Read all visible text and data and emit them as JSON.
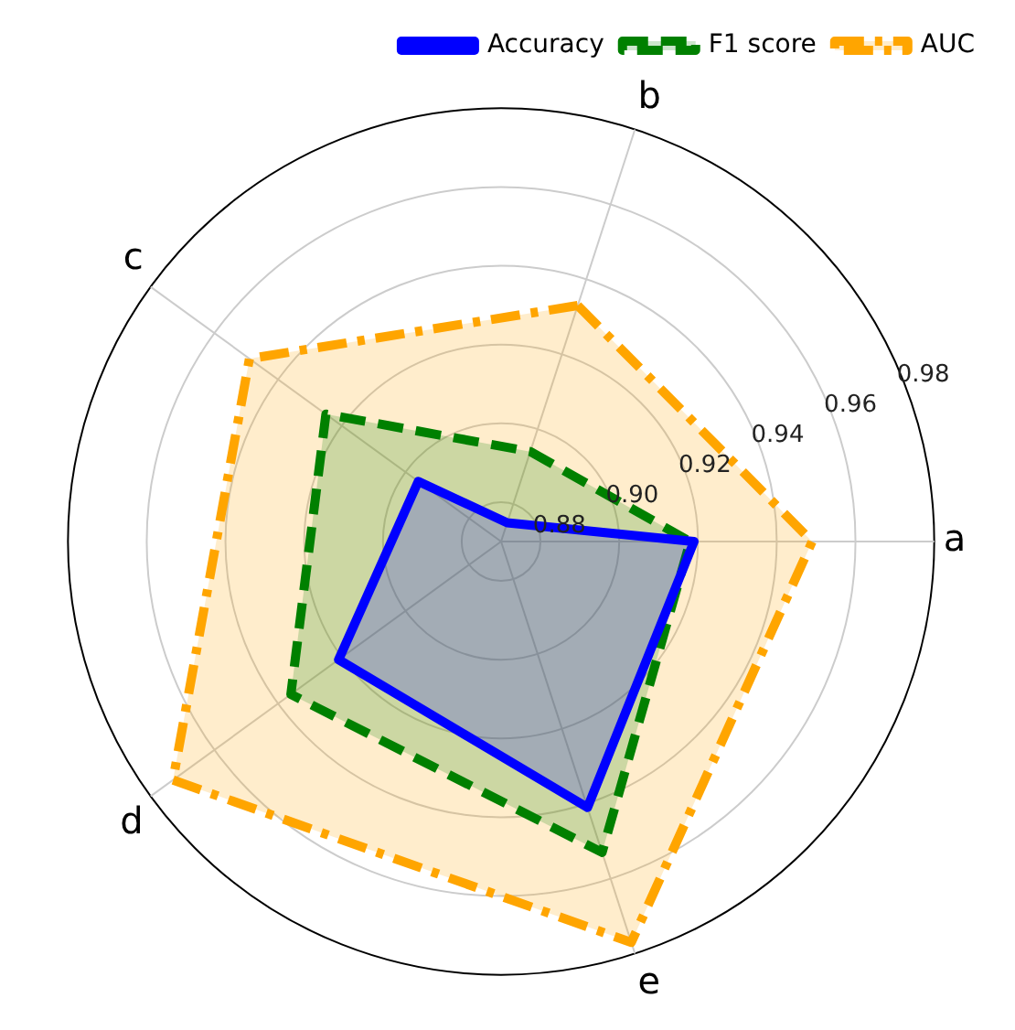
{
  "chart_data": {
    "type": "radar",
    "categories": [
      "b",
      "a",
      "e",
      "d",
      "c"
    ],
    "ylim": [
      0.87,
      0.98
    ],
    "yticks": [
      0.88,
      {
        "value": 0.9,
        "label": "0.90"
      },
      0.92,
      0.94,
      0.96,
      0.98
    ],
    "grid": true,
    "legend": "top right",
    "series": [
      {
        "name": "Accuracy",
        "color": "#0000ff",
        "line_style": "solid",
        "values": [
          0.875,
          0.919,
          0.941,
          0.921,
          0.896
        ]
      },
      {
        "name": "F1 score",
        "color": "#008000",
        "line_style": "dashed",
        "values": [
          0.894,
          0.918,
          0.953,
          0.936,
          0.925
        ]
      },
      {
        "name": "AUC",
        "color": "#ffa500",
        "line_style": "dashdot",
        "values": [
          0.933,
          0.949,
          0.977,
          0.973,
          0.949
        ]
      }
    ]
  }
}
